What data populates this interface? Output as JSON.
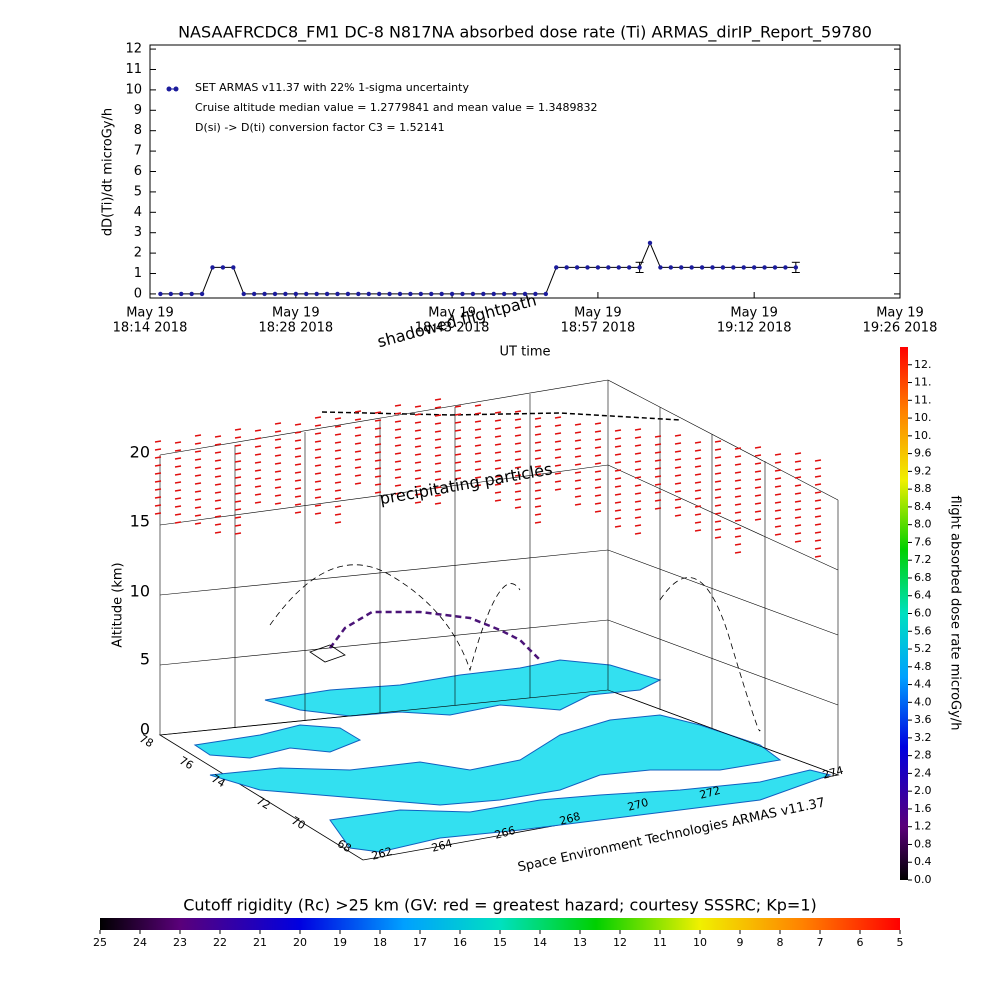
{
  "chart_data": [
    {
      "type": "line",
      "title": "NASAAFRCDC8_FM1 DC-8   N817NA absorbed dose rate (Ti) ARMAS_dirIP_Report_59780",
      "ylabel": "dD(Ti)/dt microGy/h",
      "xlabel": "UT time",
      "legend": [
        "SET ARMAS v11.37 with 22% 1-sigma uncertainty",
        "Cruise altitude median value = 1.2779841 and mean value = 1.3489832",
        "D(si) -> D(ti) conversion factor C3 = 1.52141"
      ],
      "legend_corner": "upper left",
      "color": "#1c1c9c",
      "line_color": "#000000",
      "ylim": [
        -0.2,
        12.2
      ],
      "yticks": [
        0,
        1,
        2,
        3,
        4,
        5,
        6,
        7,
        8,
        9,
        10,
        11,
        12
      ],
      "xlim": [
        "2018-05-19 18:14",
        "2018-05-19 19:26"
      ],
      "xticks": [
        {
          "value": "2018-05-19 18:14",
          "label": [
            "May 19",
            "18:14 2018"
          ]
        },
        {
          "value": "2018-05-19 18:28",
          "label": [
            "May 19",
            "18:28 2018"
          ]
        },
        {
          "value": "2018-05-19 18:43",
          "label": [
            "May 19",
            "18:43 2018"
          ]
        },
        {
          "value": "2018-05-19 18:57",
          "label": [
            "May 19",
            "18:57 2018"
          ]
        },
        {
          "value": "2018-05-19 19:12",
          "label": [
            "May 19",
            "19:12 2018"
          ]
        },
        {
          "value": "2018-05-19 19:26",
          "label": [
            "May 19",
            "19:26 2018"
          ]
        }
      ],
      "x": [
        "2018-05-19 18:15",
        "2018-05-19 18:16",
        "2018-05-19 18:17",
        "2018-05-19 18:18",
        "2018-05-19 18:19",
        "2018-05-19 18:20",
        "2018-05-19 18:21",
        "2018-05-19 18:22",
        "2018-05-19 18:23",
        "2018-05-19 18:24",
        "2018-05-19 18:25",
        "2018-05-19 18:26",
        "2018-05-19 18:27",
        "2018-05-19 18:28",
        "2018-05-19 18:29",
        "2018-05-19 18:30",
        "2018-05-19 18:31",
        "2018-05-19 18:32",
        "2018-05-19 18:33",
        "2018-05-19 18:34",
        "2018-05-19 18:35",
        "2018-05-19 18:36",
        "2018-05-19 18:37",
        "2018-05-19 18:38",
        "2018-05-19 18:39",
        "2018-05-19 18:40",
        "2018-05-19 18:41",
        "2018-05-19 18:42",
        "2018-05-19 18:43",
        "2018-05-19 18:44",
        "2018-05-19 18:45",
        "2018-05-19 18:46",
        "2018-05-19 18:47",
        "2018-05-19 18:48",
        "2018-05-19 18:49",
        "2018-05-19 18:50",
        "2018-05-19 18:51",
        "2018-05-19 18:52",
        "2018-05-19 18:53",
        "2018-05-19 18:54",
        "2018-05-19 18:55",
        "2018-05-19 18:56",
        "2018-05-19 18:57",
        "2018-05-19 18:58",
        "2018-05-19 18:59",
        "2018-05-19 19:00",
        "2018-05-19 19:01",
        "2018-05-19 19:02",
        "2018-05-19 19:03",
        "2018-05-19 19:04",
        "2018-05-19 19:05",
        "2018-05-19 19:06",
        "2018-05-19 19:07",
        "2018-05-19 19:08",
        "2018-05-19 19:09",
        "2018-05-19 19:10",
        "2018-05-19 19:11",
        "2018-05-19 19:12",
        "2018-05-19 19:13",
        "2018-05-19 19:14",
        "2018-05-19 19:15",
        "2018-05-19 19:16"
      ],
      "values": [
        0,
        0,
        0,
        0,
        0,
        1.3,
        1.3,
        1.3,
        0,
        0,
        0,
        0,
        0,
        0,
        0,
        0,
        0,
        0,
        0,
        0,
        0,
        0,
        0,
        0,
        0,
        0,
        0,
        0,
        0,
        0,
        0,
        0,
        0,
        0,
        0,
        0,
        0,
        0,
        1.3,
        1.3,
        1.3,
        1.3,
        1.3,
        1.3,
        1.3,
        1.3,
        1.3,
        2.5,
        1.3,
        1.3,
        1.3,
        1.3,
        1.3,
        1.3,
        1.3,
        1.3,
        1.3,
        1.3,
        1.3,
        1.3,
        1.3,
        1.3
      ],
      "errors": [
        null,
        null,
        null,
        null,
        null,
        null,
        null,
        null,
        null,
        null,
        null,
        null,
        null,
        null,
        null,
        null,
        null,
        null,
        null,
        null,
        null,
        null,
        null,
        null,
        null,
        null,
        null,
        null,
        null,
        null,
        null,
        null,
        null,
        null,
        null,
        null,
        null,
        null,
        null,
        null,
        null,
        null,
        null,
        null,
        null,
        null,
        0.25,
        null,
        null,
        null,
        null,
        null,
        null,
        null,
        null,
        null,
        null,
        null,
        null,
        null,
        null,
        0.25
      ]
    },
    {
      "type": "scene3d",
      "zlabel": "Altitude (km)",
      "zticks": [
        0,
        5,
        10,
        15,
        20
      ],
      "lat_ticks": [
        68,
        70,
        72,
        74,
        76,
        78
      ],
      "lon_ticks": [
        262,
        264,
        266,
        268,
        270,
        272,
        274
      ],
      "annotations": [
        "shadowed flightpath",
        "precipitating particles",
        "Space Environment Technologies ARMAS v11.37"
      ]
    },
    {
      "type": "colorbar",
      "title": "flight absorbed dose rate microGy/h",
      "ylim": [
        0,
        12
      ],
      "yticks": [
        {
          "value": 0,
          "label": "0.0"
        },
        0.4,
        0.8,
        1.2,
        1.6,
        {
          "value": 2,
          "label": "2.0"
        },
        2.4,
        2.8,
        3.2,
        3.6,
        {
          "value": 4,
          "label": "4.0"
        },
        4.4,
        4.8,
        5.2,
        5.6,
        {
          "value": 6,
          "label": "6.0"
        },
        6.4,
        6.8,
        7.2,
        7.6,
        {
          "value": 8,
          "label": "8.0"
        },
        8.4,
        8.8,
        9.2,
        9.6,
        {
          "value": 10,
          "label": "10."
        },
        {
          "value": 10.4,
          "label": "10."
        },
        {
          "value": 10.8,
          "label": "11."
        },
        {
          "value": 11.2,
          "label": "11."
        },
        {
          "value": 11.6,
          "label": "12."
        }
      ]
    },
    {
      "type": "colorbar",
      "title": "Cutoff rigidity (Rc) >25 km (GV: red = greatest hazard; courtesy SSSRC; Kp=1)",
      "xlim": [
        25,
        5
      ],
      "xticks": [
        25,
        24,
        23,
        22,
        21,
        20,
        19,
        18,
        17,
        16,
        15,
        14,
        13,
        12,
        11,
        10,
        9,
        8,
        7,
        6,
        5
      ]
    }
  ]
}
